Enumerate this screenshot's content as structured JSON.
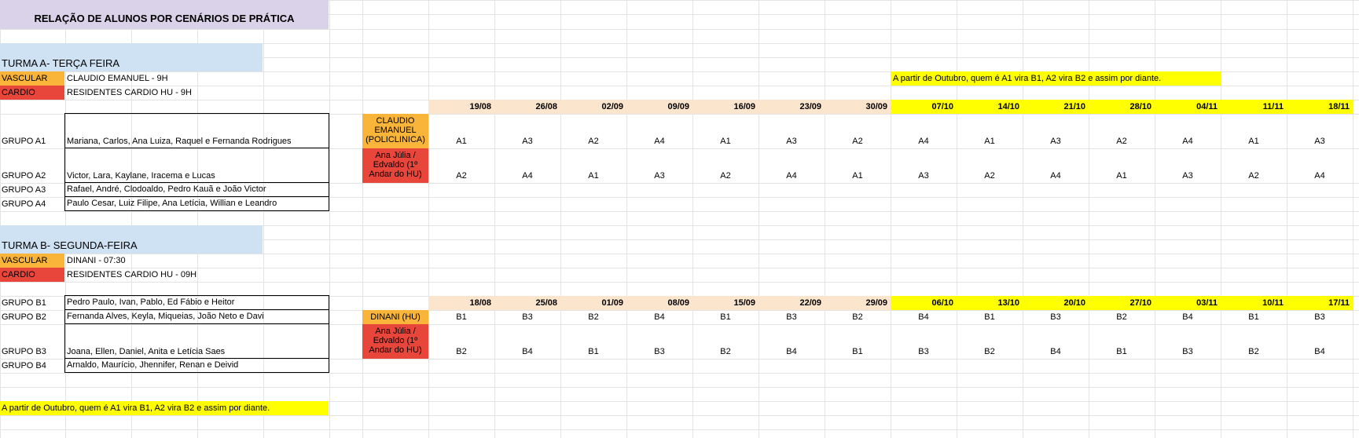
{
  "title": "RELAÇÃO DE ALUNOS POR CENÁRIOS DE PRÁTICA",
  "colors": {
    "title_fill": "#d9d2e9",
    "turma_fill": "#cfe2f3",
    "vascular_fill": "#f9b43a",
    "cardio_fill": "#e8463b",
    "date_peach": "#fce5cd",
    "date_yellow": "#ffff00"
  },
  "note": "A partir de Outubro, quem é A1 vira B1, A2 vira B2 e assim por diante.",
  "turma_a": {
    "heading": "TURMA A- TERÇA FEIRA",
    "vascular_label": "VASCULAR",
    "vascular_value": "CLAUDIO EMANUEL - 9H",
    "cardio_label": "CARDIO",
    "cardio_value": "RESIDENTES CARDIO HU - 9H",
    "groups": [
      {
        "label": "GRUPO A1",
        "members": "Mariana, Carlos, Ana Luiza, Raquel e Fernanda Rodrigues"
      },
      {
        "label": "GRUPO A2",
        "members": "Victor, Lara, Kaylane, Iracema e Lucas"
      },
      {
        "label": "GRUPO A3",
        "members": "Rafael, André, Clodoaldo, Pedro Kauã e João Victor"
      },
      {
        "label": "GRUPO A4",
        "members": "Paulo Cesar, Luiz Filipe, Ana Letícia, Willian e Leandro"
      }
    ],
    "place1": "CLAUDIO EMANUEL (POLICLINICA)",
    "place2": "Ana Júlia / Edvaldo (1º Andar do HU)",
    "dates": [
      "19/08",
      "26/08",
      "02/09",
      "09/09",
      "16/09",
      "23/09",
      "30/09",
      "07/10",
      "14/10",
      "21/10",
      "28/10",
      "04/11",
      "11/11",
      "18/11"
    ],
    "row1": [
      "A1",
      "A3",
      "A2",
      "A4",
      "A1",
      "A3",
      "A2",
      "A4",
      "A1",
      "A3",
      "A2",
      "A4",
      "A1",
      "A3"
    ],
    "row2": [
      "A2",
      "A4",
      "A1",
      "A3",
      "A2",
      "A4",
      "A1",
      "A3",
      "A2",
      "A4",
      "A1",
      "A3",
      "A2",
      "A4"
    ]
  },
  "turma_b": {
    "heading": "TURMA B- SEGUNDA-FEIRA",
    "vascular_label": "VASCULAR",
    "vascular_value": "DINANI - 07:30",
    "cardio_label": "CARDIO",
    "cardio_value": "RESIDENTES CARDIO HU - 09H",
    "groups": [
      {
        "label": "GRUPO B1",
        "members": "Pedro Paulo, Ivan, Pablo, Ed Fábio e Heitor"
      },
      {
        "label": "GRUPO B2",
        "members": "Fernanda Alves, Keyla, Miqueias, João Neto e Davi"
      },
      {
        "label": "GRUPO B3",
        "members": "Joana, Ellen, Daniel, Anita e Letícia Saes"
      },
      {
        "label": "GRUPO B4",
        "members": "Arnaldo, Maurício, Jhennifer, Renan e Deivid"
      }
    ],
    "place1": "DINANI (HU)",
    "place2": "Ana Júlia / Edvaldo (1º Andar do HU)",
    "dates": [
      "18/08",
      "25/08",
      "01/09",
      "08/09",
      "15/09",
      "22/09",
      "29/09",
      "06/10",
      "13/10",
      "20/10",
      "27/10",
      "03/11",
      "10/11",
      "17/11"
    ],
    "row1": [
      "B1",
      "B3",
      "B2",
      "B4",
      "B1",
      "B3",
      "B2",
      "B4",
      "B1",
      "B3",
      "B2",
      "B4",
      "B1",
      "B3"
    ],
    "row2": [
      "B2",
      "B4",
      "B1",
      "B3",
      "B2",
      "B4",
      "B1",
      "B3",
      "B2",
      "B4",
      "B1",
      "B3",
      "B2",
      "B4"
    ]
  }
}
